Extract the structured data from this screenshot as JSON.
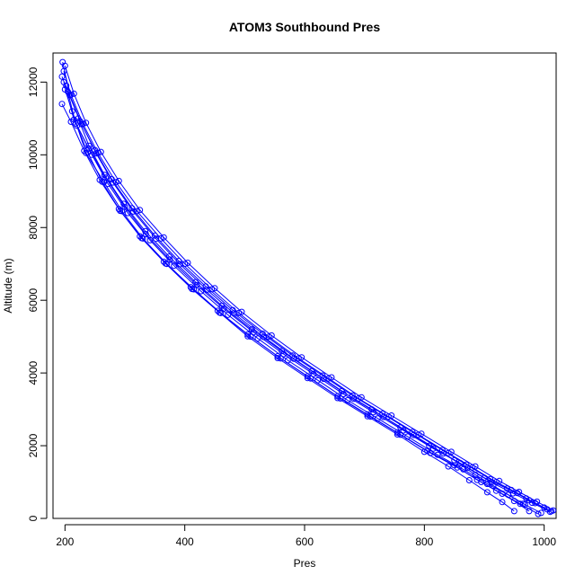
{
  "chart_data": {
    "type": "line",
    "title": "ATOM3 Southbound Pres",
    "xlabel": "Pres",
    "ylabel": "Altitude (m)",
    "xlim": [
      180,
      1020
    ],
    "ylim": [
      0,
      12800
    ],
    "xticks": [
      200,
      400,
      600,
      800,
      1000
    ],
    "yticks": [
      0,
      2000,
      4000,
      6000,
      8000,
      10000,
      12000
    ],
    "grid": false,
    "marker": "open-circle",
    "color": "#0000ff",
    "series": [
      {
        "x": [
          1012,
          985,
          955,
          920,
          880,
          840,
          790,
          740,
          690,
          640,
          590,
          540,
          490,
          445,
          400,
          360,
          320,
          285,
          255,
          230,
          210,
          198
        ],
        "y": [
          200,
          420,
          700,
          1000,
          1400,
          1800,
          2300,
          2800,
          3300,
          3850,
          4400,
          5000,
          5650,
          6300,
          7000,
          7700,
          8450,
          9250,
          10050,
          10850,
          11650,
          12300
        ]
      },
      {
        "x": [
          1005,
          975,
          945,
          910,
          870,
          830,
          780,
          730,
          680,
          630,
          580,
          530,
          480,
          435,
          390,
          350,
          312,
          278,
          250,
          225,
          205,
          195
        ],
        "y": [
          250,
          500,
          780,
          1080,
          1480,
          1880,
          2380,
          2880,
          3380,
          3930,
          4480,
          5080,
          5730,
          6380,
          7080,
          7780,
          8530,
          9330,
          10130,
          10930,
          11730,
          12150
        ]
      },
      {
        "x": [
          995,
          968,
          940,
          905,
          865,
          822,
          772,
          722,
          672,
          622,
          572,
          522,
          472,
          427,
          382,
          342,
          305,
          272,
          245,
          220,
          200
        ],
        "y": [
          150,
          380,
          650,
          950,
          1350,
          1750,
          2250,
          2750,
          3250,
          3800,
          4350,
          4950,
          5600,
          6250,
          6950,
          7650,
          8400,
          9200,
          10000,
          10800,
          11800
        ]
      },
      {
        "x": [
          1000,
          970,
          938,
          900,
          860,
          815,
          765,
          715,
          665,
          615,
          565,
          515,
          465,
          420,
          375,
          335,
          300,
          268,
          240,
          215,
          198
        ],
        "y": [
          300,
          550,
          820,
          1120,
          1520,
          1920,
          2420,
          2920,
          3420,
          3970,
          4520,
          5120,
          5770,
          6420,
          7120,
          7820,
          8570,
          9370,
          10170,
          10970,
          12000
        ]
      },
      {
        "x": [
          950,
          930,
          905,
          875,
          840,
          800,
          755,
          705,
          655,
          605,
          555,
          505,
          458,
          412,
          368,
          328,
          292,
          262,
          238,
          218,
          202
        ],
        "y": [
          200,
          450,
          720,
          1050,
          1430,
          1830,
          2310,
          2810,
          3310,
          3860,
          4410,
          5010,
          5660,
          6310,
          7010,
          7710,
          8460,
          9260,
          10060,
          10860,
          11900
        ]
      },
      {
        "x": [
          1010,
          980,
          948,
          912,
          872,
          832,
          782,
          732,
          682,
          632,
          582,
          532,
          482,
          437,
          392,
          352,
          314,
          280,
          252,
          228,
          208,
          196
        ],
        "y": [
          180,
          430,
          690,
          990,
          1390,
          1790,
          2290,
          2790,
          3290,
          3840,
          4390,
          4990,
          5640,
          6290,
          6990,
          7690,
          8440,
          9240,
          10040,
          10840,
          11640,
          12550
        ]
      },
      {
        "x": [
          990,
          960,
          930,
          895,
          855,
          810,
          760,
          710,
          660,
          610,
          560,
          510,
          460,
          415,
          370,
          330,
          295,
          265,
          235,
          212
        ],
        "y": [
          120,
          400,
          680,
          1000,
          1400,
          1800,
          2300,
          2800,
          3300,
          3850,
          4400,
          5000,
          5650,
          6300,
          7000,
          7700,
          8450,
          9250,
          10050,
          11200
        ]
      },
      {
        "x": [
          965,
          940,
          915,
          885,
          850,
          808,
          760,
          712,
          662,
          612,
          562,
          512,
          462,
          418,
          374,
          334,
          298,
          266,
          240,
          222
        ],
        "y": [
          400,
          650,
          900,
          1200,
          1600,
          2000,
          2500,
          3000,
          3500,
          4050,
          4600,
          5200,
          5850,
          6500,
          7200,
          7900,
          8650,
          9450,
          10250,
          11000
        ]
      },
      {
        "x": [
          1015,
          988,
          958,
          925,
          885,
          845,
          795,
          745,
          695,
          645,
          595,
          545,
          495,
          450,
          405,
          365,
          325,
          290,
          260,
          235,
          215,
          200
        ],
        "y": [
          220,
          460,
          730,
          1030,
          1430,
          1830,
          2330,
          2830,
          3330,
          3880,
          4430,
          5030,
          5680,
          6330,
          7030,
          7730,
          8480,
          9280,
          10080,
          10880,
          11680,
          12450
        ]
      },
      {
        "x": [
          975,
          950,
          920,
          888,
          850,
          805,
          755,
          705,
          655,
          605,
          555,
          505,
          455,
          410,
          365,
          325,
          290,
          258,
          232,
          210,
          195
        ],
        "y": [
          200,
          480,
          760,
          1060,
          1460,
          1860,
          2360,
          2860,
          3360,
          3910,
          4460,
          5060,
          5710,
          6360,
          7060,
          7760,
          8510,
          9310,
          10110,
          10910,
          11400
        ]
      }
    ]
  }
}
